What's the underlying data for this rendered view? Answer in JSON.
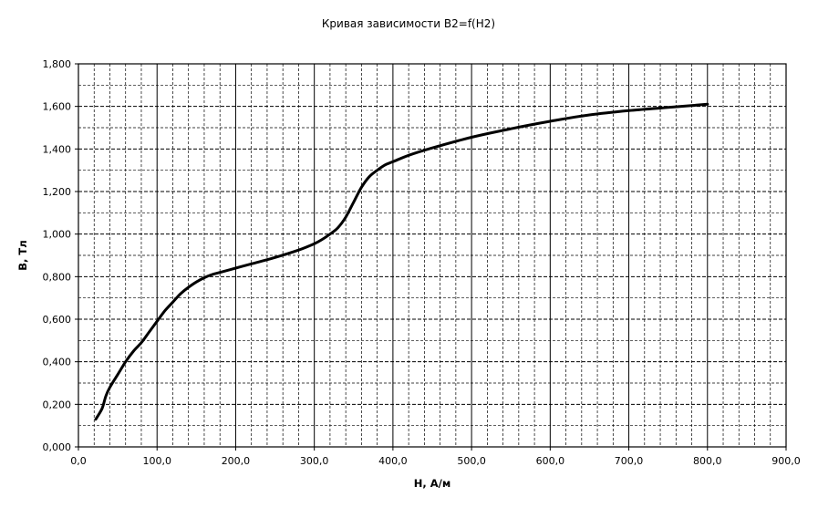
{
  "chart_data": {
    "type": "line",
    "title": "Кривая зависимости В2=f(H2)",
    "xlabel": "H, А/м",
    "ylabel": "В, Тл",
    "xlim": [
      0,
      900
    ],
    "ylim": [
      0,
      1.8
    ],
    "x_major_step": 100,
    "x_minor_step": 20,
    "y_major_step": 0.2,
    "y_minor_step": 0.1,
    "grid": true,
    "x_tick_labels": [
      "0,0",
      "100,0",
      "200,0",
      "300,0",
      "400,0",
      "500,0",
      "600,0",
      "700,0",
      "800,0",
      "900,0"
    ],
    "y_tick_labels": [
      "0,000",
      "0,200",
      "0,400",
      "0,600",
      "0,800",
      "1,000",
      "1,200",
      "1,400",
      "1,600",
      "1,800"
    ],
    "series": [
      {
        "color": "#000000",
        "x": [
          22,
          30,
          35,
          40,
          50,
          60,
          70,
          80,
          90,
          100,
          110,
          120,
          130,
          140,
          150,
          160,
          170,
          180,
          200,
          220,
          250,
          280,
          300,
          310,
          320,
          330,
          340,
          350,
          360,
          370,
          380,
          390,
          400,
          420,
          450,
          500,
          550,
          600,
          650,
          700,
          750,
          800
        ],
        "y": [
          0.13,
          0.18,
          0.24,
          0.28,
          0.34,
          0.4,
          0.45,
          0.49,
          0.54,
          0.59,
          0.64,
          0.68,
          0.72,
          0.75,
          0.775,
          0.795,
          0.81,
          0.82,
          0.84,
          0.86,
          0.89,
          0.925,
          0.955,
          0.975,
          1.0,
          1.03,
          1.08,
          1.15,
          1.22,
          1.27,
          1.3,
          1.325,
          1.34,
          1.37,
          1.405,
          1.455,
          1.495,
          1.53,
          1.56,
          1.58,
          1.595,
          1.61
        ]
      }
    ]
  }
}
